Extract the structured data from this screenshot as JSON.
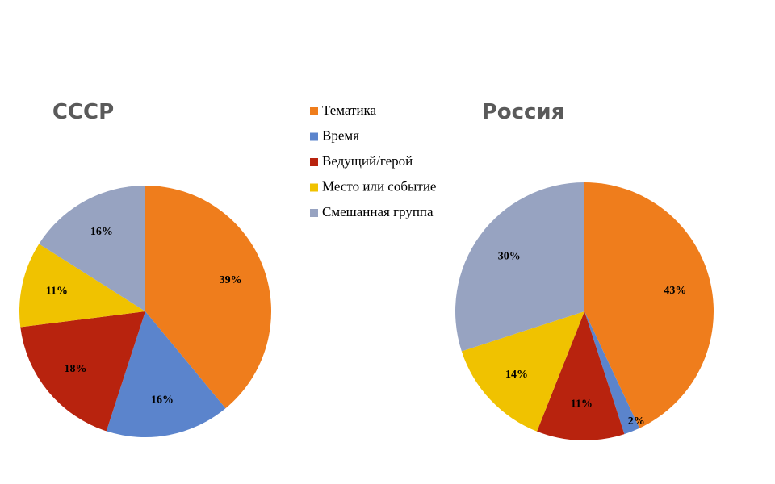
{
  "chart_data": [
    {
      "type": "pie",
      "title": "СССР",
      "categories": [
        "Тематика",
        "Время",
        "Ведущий/герой",
        "Место или событие",
        "Смешанная группа"
      ],
      "colors": [
        "#ef7d1c",
        "#5b84cc",
        "#b8230e",
        "#f0c200",
        "#97a3c1"
      ],
      "values": [
        39,
        16,
        18,
        11,
        16
      ],
      "value_labels": [
        "39%",
        "16%",
        "18%",
        "11%",
        "16%"
      ]
    },
    {
      "type": "pie",
      "title": "Россия",
      "values": [
        43,
        2,
        11,
        14,
        30
      ],
      "value_labels": [
        "43%",
        "2%",
        "11%",
        "14%",
        "30%"
      ]
    }
  ]
}
